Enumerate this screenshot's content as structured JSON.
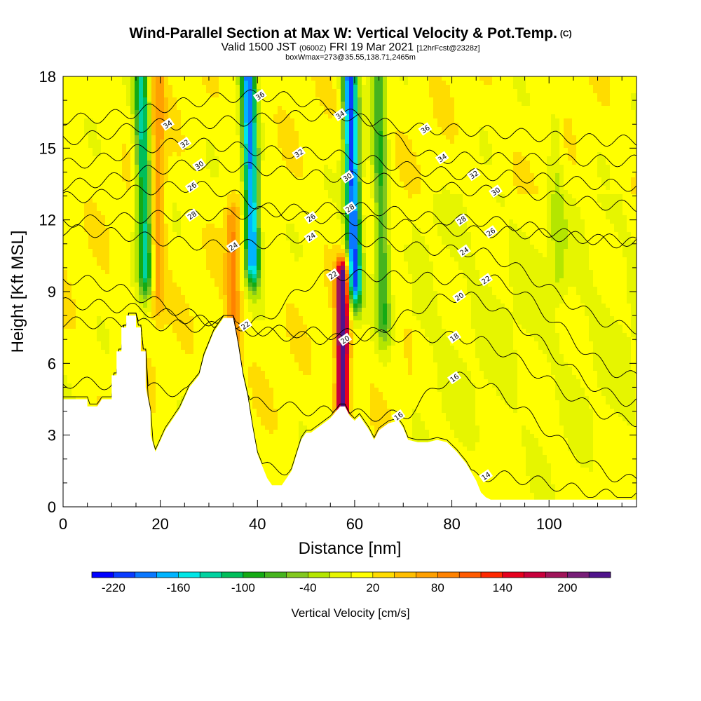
{
  "header": {
    "title": "Wind-Parallel Section at Max W: Vertical Velocity & Pot.Temp.",
    "copyright": "(C)",
    "valid_prefix": "Valid 1500 JST",
    "valid_utc": "(0600Z)",
    "valid_date": "FRI 19 Mar 2021",
    "forecast": "[12hrFcst@2328z]",
    "box_info": "boxWmax=273@35.55,138.71,2465m"
  },
  "chart_data": {
    "type": "heatmap",
    "title": "Wind-Parallel Section at Max W: Vertical Velocity & Pot.Temp.",
    "xlabel": "Distance [nm]",
    "ylabel": "Height [Kft MSL]",
    "xlim": [
      0,
      118
    ],
    "ylim": [
      0,
      18
    ],
    "x_ticks": [
      "0",
      "20",
      "40",
      "60",
      "80",
      "100"
    ],
    "y_ticks": [
      "0",
      "3",
      "6",
      "9",
      "12",
      "15",
      "18"
    ],
    "colorbar": {
      "title": "Vertical Velocity [cm/s]",
      "tick_labels": [
        "-220",
        "-160",
        "-100",
        "-40",
        "20",
        "80",
        "140",
        "200"
      ],
      "levels_min": -240,
      "level_step": 20,
      "colors": [
        "#0000ff",
        "#0a3cff",
        "#0a78ff",
        "#00b4ff",
        "#00e6e6",
        "#00d2a0",
        "#00be5a",
        "#14aa14",
        "#46b41e",
        "#82c81e",
        "#b4e600",
        "#e6f500",
        "#ffff00",
        "#ffdc00",
        "#ffbe00",
        "#ffa000",
        "#ff8200",
        "#ff5a00",
        "#ff2800",
        "#e6001e",
        "#c8003c",
        "#a0145a",
        "#781e78",
        "#50148c"
      ]
    },
    "w_features": [
      {
        "x": 17,
        "y_top": 18,
        "y_bottom": 10,
        "w": -140,
        "kind": "downdraft"
      },
      {
        "x": 19.5,
        "y_top": 18,
        "y_bottom": 9,
        "w": 60,
        "kind": "updraft"
      },
      {
        "x": 39,
        "y_top": 18,
        "y_bottom": 10.5,
        "w": -200,
        "kind": "downdraft"
      },
      {
        "x": 35,
        "y_top": 12,
        "y_bottom": 7,
        "w": 70,
        "kind": "updraft"
      },
      {
        "x": 60,
        "y_top": 18,
        "y_bottom": 9.5,
        "w": -220,
        "kind": "downdraft"
      },
      {
        "x": 57.5,
        "y_top": 9.5,
        "y_bottom": 4.3,
        "w": 273,
        "kind": "updraft"
      },
      {
        "x": 66,
        "y_top": 18,
        "y_bottom": 8,
        "w": -90,
        "kind": "downdraft"
      },
      {
        "x": 102,
        "y_top": 16,
        "y_bottom": 10,
        "w": -30,
        "kind": "downdraft"
      }
    ],
    "terrain": [
      [
        0,
        4.5
      ],
      [
        5,
        4.5
      ],
      [
        5,
        4.2
      ],
      [
        7,
        4.2
      ],
      [
        8,
        4.5
      ],
      [
        10,
        4.5
      ],
      [
        10,
        5.5
      ],
      [
        11,
        5.5
      ],
      [
        11,
        6.5
      ],
      [
        12,
        6.5
      ],
      [
        12,
        7.5
      ],
      [
        13,
        7.5
      ],
      [
        13,
        8
      ],
      [
        15,
        8
      ],
      [
        15,
        7.5
      ],
      [
        16,
        7.5
      ],
      [
        16,
        6.5
      ],
      [
        17,
        6.5
      ],
      [
        17,
        5
      ],
      [
        18,
        4
      ],
      [
        18,
        3
      ],
      [
        19,
        2.3
      ],
      [
        21,
        3.2
      ],
      [
        23,
        3.8
      ],
      [
        24,
        4.1
      ],
      [
        26,
        5
      ],
      [
        28,
        5.5
      ],
      [
        29,
        6.3
      ],
      [
        30,
        6.8
      ],
      [
        31,
        7.3
      ],
      [
        33,
        7.9
      ],
      [
        35,
        7.9
      ],
      [
        36,
        6.8
      ],
      [
        37,
        5.5
      ],
      [
        38,
        4.6
      ],
      [
        39,
        3.3
      ],
      [
        40,
        2.2
      ],
      [
        42,
        1.2
      ],
      [
        43,
        0.9
      ],
      [
        45,
        0.9
      ],
      [
        47,
        1.5
      ],
      [
        49,
        2.8
      ],
      [
        50,
        3.1
      ],
      [
        51,
        3.1
      ],
      [
        53,
        3.4
      ],
      [
        55,
        3.7
      ],
      [
        57,
        4.2
      ],
      [
        58,
        4.2
      ],
      [
        59,
        3.8
      ],
      [
        60,
        3.6
      ],
      [
        61,
        3.8
      ],
      [
        62,
        3.5
      ],
      [
        63,
        3.2
      ],
      [
        64,
        2.8
      ],
      [
        65,
        3.2
      ],
      [
        67,
        3.5
      ],
      [
        69,
        3.6
      ],
      [
        70,
        3.3
      ],
      [
        71,
        2.8
      ],
      [
        73,
        2.7
      ],
      [
        75,
        2.7
      ],
      [
        77,
        2.8
      ],
      [
        79,
        2.7
      ],
      [
        81,
        2.3
      ],
      [
        83,
        1.8
      ],
      [
        85,
        1.1
      ],
      [
        86,
        0.6
      ],
      [
        87,
        0.4
      ],
      [
        88,
        0.3
      ],
      [
        118,
        0.3
      ]
    ],
    "contours": [
      {
        "value": "14",
        "label_x": 87,
        "label_y": 1.3
      },
      {
        "value": "16",
        "label_x": 69,
        "label_y": 3.8
      },
      {
        "value": "16",
        "label_x": 80.5,
        "label_y": 5.4
      },
      {
        "value": "18",
        "label_x": 80.5,
        "label_y": 7.1
      },
      {
        "value": "20",
        "label_x": 58,
        "label_y": 7.0
      },
      {
        "value": "20",
        "label_x": 81.5,
        "label_y": 8.8
      },
      {
        "value": "22",
        "label_x": 37.5,
        "label_y": 7.6
      },
      {
        "value": "22",
        "label_x": 55.5,
        "label_y": 9.7
      },
      {
        "value": "22",
        "label_x": 87,
        "label_y": 9.5
      },
      {
        "value": "24",
        "label_x": 35,
        "label_y": 10.9
      },
      {
        "value": "24",
        "label_x": 51,
        "label_y": 11.3
      },
      {
        "value": "24",
        "label_x": 82.5,
        "label_y": 10.7
      },
      {
        "value": "26",
        "label_x": 51,
        "label_y": 12.1
      },
      {
        "value": "26",
        "label_x": 88,
        "label_y": 11.5
      },
      {
        "value": "26",
        "label_x": 26.5,
        "label_y": 13.4
      },
      {
        "value": "28",
        "label_x": 26.5,
        "label_y": 12.2
      },
      {
        "value": "28",
        "label_x": 59,
        "label_y": 12.5
      },
      {
        "value": "28",
        "label_x": 82,
        "label_y": 12.0
      },
      {
        "value": "30",
        "label_x": 28,
        "label_y": 14.3
      },
      {
        "value": "30",
        "label_x": 58.5,
        "label_y": 13.8
      },
      {
        "value": "30",
        "label_x": 89,
        "label_y": 13.2
      },
      {
        "value": "32",
        "label_x": 25,
        "label_y": 15.2
      },
      {
        "value": "32",
        "label_x": 48.5,
        "label_y": 14.8
      },
      {
        "value": "32",
        "label_x": 84.5,
        "label_y": 13.9
      },
      {
        "value": "34",
        "label_x": 21.5,
        "label_y": 16.0
      },
      {
        "value": "34",
        "label_x": 57,
        "label_y": 16.4
      },
      {
        "value": "34",
        "label_x": 78,
        "label_y": 14.6
      },
      {
        "value": "36",
        "label_x": 40.5,
        "label_y": 17.2
      },
      {
        "value": "36",
        "label_x": 74.5,
        "label_y": 15.8
      }
    ]
  }
}
